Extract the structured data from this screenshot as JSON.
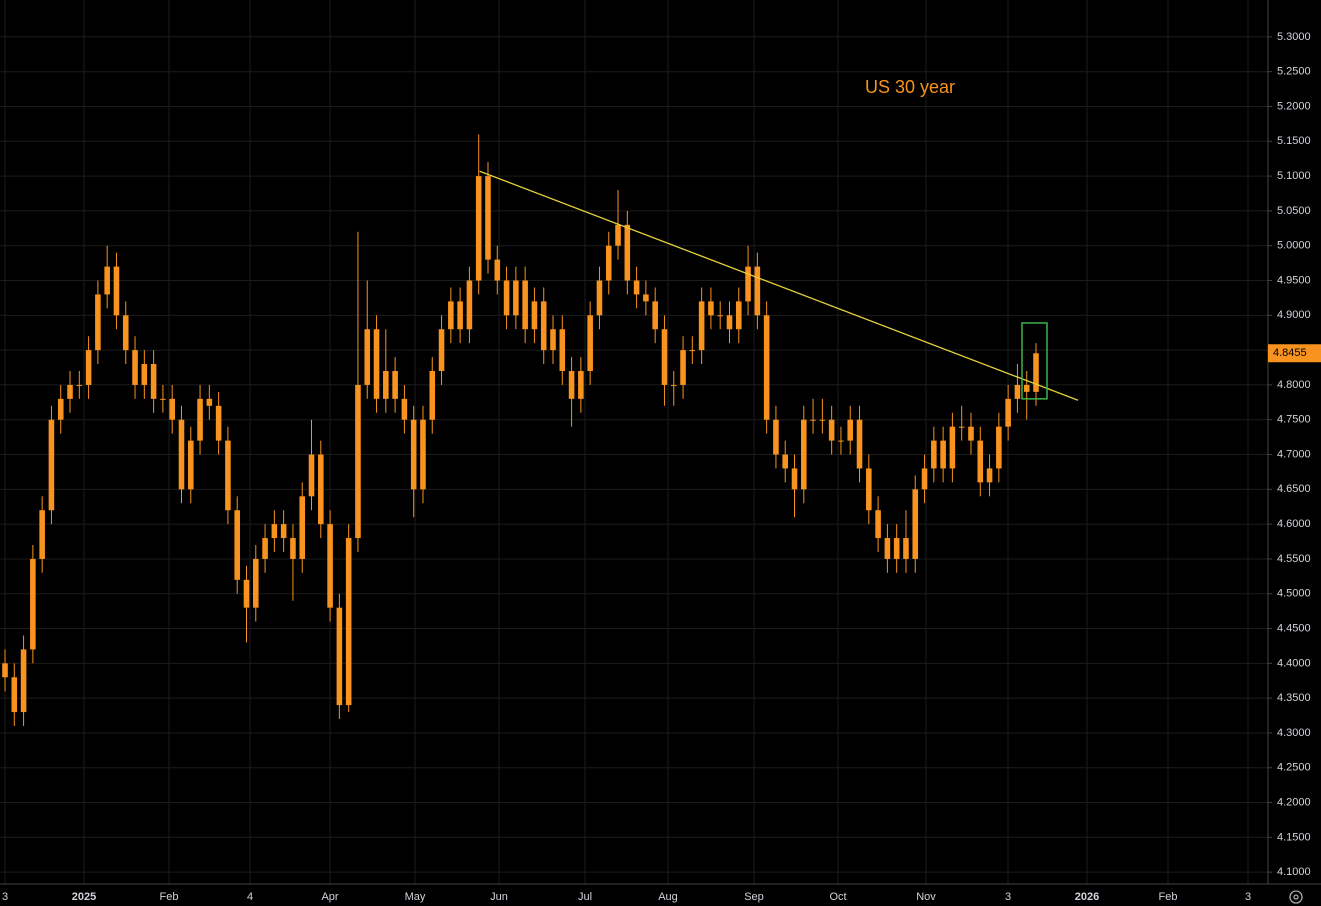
{
  "chart_data": {
    "type": "candlestick",
    "title": "US 30 year",
    "color": "#f7931e",
    "ylim": [
      4.083,
      5.353
    ],
    "yticks": [
      {
        "value": 4.1,
        "label": "4.1000"
      },
      {
        "value": 4.15,
        "label": "4.1500"
      },
      {
        "value": 4.2,
        "label": "4.2000"
      },
      {
        "value": 4.25,
        "label": "4.2500"
      },
      {
        "value": 4.3,
        "label": "4.3000"
      },
      {
        "value": 4.35,
        "label": "4.3500"
      },
      {
        "value": 4.4,
        "label": "4.4000"
      },
      {
        "value": 4.45,
        "label": "4.4500"
      },
      {
        "value": 4.5,
        "label": "4.5000"
      },
      {
        "value": 4.55,
        "label": "4.5500"
      },
      {
        "value": 4.6,
        "label": "4.6000"
      },
      {
        "value": 4.65,
        "label": "4.6500"
      },
      {
        "value": 4.7,
        "label": "4.7000"
      },
      {
        "value": 4.75,
        "label": "4.7500"
      },
      {
        "value": 4.8,
        "label": "4.8000"
      },
      {
        "value": 4.85,
        "label": "4.8500"
      },
      {
        "value": 4.9,
        "label": "4.9000"
      },
      {
        "value": 4.95,
        "label": "4.9500"
      },
      {
        "value": 5.0,
        "label": "5.0000"
      },
      {
        "value": 5.05,
        "label": "5.0500"
      },
      {
        "value": 5.1,
        "label": "5.1000"
      },
      {
        "value": 5.15,
        "label": "5.1500"
      },
      {
        "value": 5.2,
        "label": "5.2000"
      },
      {
        "value": 5.25,
        "label": "5.2500"
      },
      {
        "value": 5.3,
        "label": "5.3000"
      }
    ],
    "xticks": [
      "3",
      "2025",
      "Feb",
      "4",
      "Apr",
      "May",
      "Jun",
      "Jul",
      "Aug",
      "Sep",
      "Oct",
      "Nov",
      "3",
      "2026",
      "Feb",
      "3"
    ],
    "grid": true,
    "last_price": 4.8455,
    "trendline": [
      5.107,
      4.778
    ],
    "highlight_box": [
      4.889,
      4.78
    ],
    "candles": [
      [
        4.4,
        4.42,
        4.36,
        4.38
      ],
      [
        4.38,
        4.4,
        4.31,
        4.33
      ],
      [
        4.33,
        4.44,
        4.31,
        4.42
      ],
      [
        4.42,
        4.57,
        4.4,
        4.55
      ],
      [
        4.55,
        4.64,
        4.53,
        4.62
      ],
      [
        4.62,
        4.77,
        4.6,
        4.75
      ],
      [
        4.75,
        4.8,
        4.73,
        4.78
      ],
      [
        4.78,
        4.82,
        4.76,
        4.8
      ],
      [
        4.8,
        4.82,
        4.78,
        4.8
      ],
      [
        4.8,
        4.87,
        4.78,
        4.85
      ],
      [
        4.85,
        4.95,
        4.83,
        4.93
      ],
      [
        4.93,
        5.0,
        4.91,
        4.97
      ],
      [
        4.97,
        4.99,
        4.88,
        4.9
      ],
      [
        4.9,
        4.92,
        4.83,
        4.85
      ],
      [
        4.85,
        4.87,
        4.78,
        4.8
      ],
      [
        4.8,
        4.85,
        4.78,
        4.83
      ],
      [
        4.83,
        4.85,
        4.76,
        4.78
      ],
      [
        4.78,
        4.8,
        4.76,
        4.78
      ],
      [
        4.78,
        4.8,
        4.73,
        4.75
      ],
      [
        4.75,
        4.77,
        4.63,
        4.65
      ],
      [
        4.65,
        4.74,
        4.63,
        4.72
      ],
      [
        4.72,
        4.8,
        4.7,
        4.78
      ],
      [
        4.78,
        4.8,
        4.75,
        4.77
      ],
      [
        4.77,
        4.79,
        4.7,
        4.72
      ],
      [
        4.72,
        4.74,
        4.6,
        4.62
      ],
      [
        4.62,
        4.64,
        4.5,
        4.52
      ],
      [
        4.52,
        4.54,
        4.43,
        4.48
      ],
      [
        4.48,
        4.57,
        4.46,
        4.55
      ],
      [
        4.55,
        4.6,
        4.53,
        4.58
      ],
      [
        4.58,
        4.62,
        4.56,
        4.6
      ],
      [
        4.6,
        4.62,
        4.56,
        4.58
      ],
      [
        4.58,
        4.6,
        4.49,
        4.55
      ],
      [
        4.55,
        4.66,
        4.53,
        4.64
      ],
      [
        4.64,
        4.75,
        4.62,
        4.7
      ],
      [
        4.7,
        4.72,
        4.58,
        4.6
      ],
      [
        4.6,
        4.62,
        4.46,
        4.48
      ],
      [
        4.48,
        4.5,
        4.32,
        4.34
      ],
      [
        4.34,
        4.6,
        4.33,
        4.58
      ],
      [
        4.58,
        5.02,
        4.56,
        4.8
      ],
      [
        4.8,
        4.95,
        4.78,
        4.88
      ],
      [
        4.88,
        4.9,
        4.76,
        4.78
      ],
      [
        4.78,
        4.88,
        4.76,
        4.82
      ],
      [
        4.82,
        4.84,
        4.76,
        4.78
      ],
      [
        4.78,
        4.8,
        4.73,
        4.75
      ],
      [
        4.75,
        4.77,
        4.61,
        4.65
      ],
      [
        4.65,
        4.77,
        4.63,
        4.75
      ],
      [
        4.75,
        4.84,
        4.73,
        4.82
      ],
      [
        4.82,
        4.9,
        4.8,
        4.88
      ],
      [
        4.88,
        4.94,
        4.86,
        4.92
      ],
      [
        4.92,
        4.94,
        4.86,
        4.88
      ],
      [
        4.88,
        4.97,
        4.86,
        4.95
      ],
      [
        4.95,
        5.16,
        4.93,
        5.1
      ],
      [
        5.1,
        5.12,
        4.96,
        4.98
      ],
      [
        4.98,
        5.0,
        4.93,
        4.95
      ],
      [
        4.95,
        4.97,
        4.88,
        4.9
      ],
      [
        4.9,
        4.97,
        4.88,
        4.95
      ],
      [
        4.95,
        4.97,
        4.86,
        4.88
      ],
      [
        4.88,
        4.94,
        4.86,
        4.92
      ],
      [
        4.92,
        4.94,
        4.83,
        4.85
      ],
      [
        4.85,
        4.9,
        4.83,
        4.88
      ],
      [
        4.88,
        4.9,
        4.8,
        4.82
      ],
      [
        4.82,
        4.84,
        4.74,
        4.78
      ],
      [
        4.78,
        4.84,
        4.76,
        4.82
      ],
      [
        4.82,
        4.92,
        4.8,
        4.9
      ],
      [
        4.9,
        4.97,
        4.88,
        4.95
      ],
      [
        4.95,
        5.02,
        4.93,
        5.0
      ],
      [
        5.0,
        5.08,
        4.98,
        5.03
      ],
      [
        5.03,
        5.05,
        4.93,
        4.95
      ],
      [
        4.95,
        4.97,
        4.91,
        4.93
      ],
      [
        4.93,
        4.95,
        4.9,
        4.92
      ],
      [
        4.92,
        4.94,
        4.86,
        4.88
      ],
      [
        4.88,
        4.9,
        4.77,
        4.8
      ],
      [
        4.8,
        4.82,
        4.77,
        4.8
      ],
      [
        4.8,
        4.87,
        4.78,
        4.85
      ],
      [
        4.85,
        4.87,
        4.83,
        4.85
      ],
      [
        4.85,
        4.94,
        4.83,
        4.92
      ],
      [
        4.92,
        4.94,
        4.88,
        4.9
      ],
      [
        4.9,
        4.92,
        4.88,
        4.9
      ],
      [
        4.9,
        4.92,
        4.86,
        4.88
      ],
      [
        4.88,
        4.94,
        4.86,
        4.92
      ],
      [
        4.92,
        5.0,
        4.9,
        4.97
      ],
      [
        4.97,
        4.99,
        4.88,
        4.9
      ],
      [
        4.9,
        4.92,
        4.73,
        4.75
      ],
      [
        4.75,
        4.77,
        4.68,
        4.7
      ],
      [
        4.7,
        4.72,
        4.66,
        4.68
      ],
      [
        4.68,
        4.7,
        4.61,
        4.65
      ],
      [
        4.65,
        4.77,
        4.63,
        4.75
      ],
      [
        4.75,
        4.78,
        4.73,
        4.75
      ],
      [
        4.75,
        4.78,
        4.73,
        4.75
      ],
      [
        4.75,
        4.77,
        4.7,
        4.72
      ],
      [
        4.72,
        4.74,
        4.7,
        4.72
      ],
      [
        4.72,
        4.77,
        4.7,
        4.75
      ],
      [
        4.75,
        4.77,
        4.66,
        4.68
      ],
      [
        4.68,
        4.7,
        4.6,
        4.62
      ],
      [
        4.62,
        4.64,
        4.56,
        4.58
      ],
      [
        4.58,
        4.6,
        4.53,
        4.55
      ],
      [
        4.55,
        4.6,
        4.53,
        4.58
      ],
      [
        4.58,
        4.62,
        4.53,
        4.55
      ],
      [
        4.55,
        4.67,
        4.53,
        4.65
      ],
      [
        4.65,
        4.7,
        4.63,
        4.68
      ],
      [
        4.68,
        4.74,
        4.66,
        4.72
      ],
      [
        4.72,
        4.74,
        4.66,
        4.68
      ],
      [
        4.68,
        4.76,
        4.66,
        4.74
      ],
      [
        4.74,
        4.77,
        4.72,
        4.74
      ],
      [
        4.74,
        4.76,
        4.7,
        4.72
      ],
      [
        4.72,
        4.74,
        4.64,
        4.66
      ],
      [
        4.66,
        4.7,
        4.64,
        4.68
      ],
      [
        4.68,
        4.76,
        4.66,
        4.74
      ],
      [
        4.74,
        4.8,
        4.72,
        4.78
      ],
      [
        4.78,
        4.83,
        4.76,
        4.8
      ],
      [
        4.8,
        4.82,
        4.75,
        4.79
      ],
      [
        4.79,
        4.86,
        4.77,
        4.8455
      ]
    ]
  }
}
